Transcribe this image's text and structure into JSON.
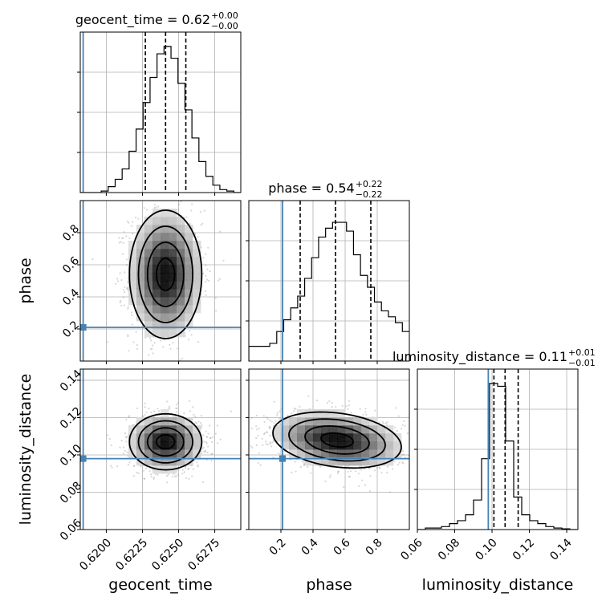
{
  "colors": {
    "truth": "#4682b4",
    "line": "#000000",
    "grid": "#b0b0b0"
  },
  "chart_data": {
    "type": "corner",
    "parameters": [
      "geocent_time",
      "phase",
      "luminosity_distance"
    ],
    "titles": [
      {
        "name": "geocent_time",
        "value": "0.62",
        "plus": "+0.00",
        "minus": "−0.00"
      },
      {
        "name": "phase",
        "value": "0.54",
        "plus": "+0.22",
        "minus": "−0.22"
      },
      {
        "name": "luminosity_distance",
        "value": "0.11",
        "plus": "+0.01",
        "minus": "−0.01"
      }
    ],
    "ranges": [
      [
        0.6182,
        0.6293
      ],
      [
        0.0,
        1.0
      ],
      [
        0.06,
        0.146
      ]
    ],
    "ticks": {
      "geocent_time": [
        0.62,
        0.6225,
        0.625,
        0.6275
      ],
      "phase": [
        0.2,
        0.4,
        0.6,
        0.8
      ],
      "luminosity_distance": [
        0.06,
        0.08,
        0.1,
        0.12,
        0.14
      ]
    },
    "tick_labels": {
      "geocent_time": [
        "0.6200",
        "0.6225",
        "0.6250",
        "0.6275"
      ],
      "phase": [
        "0.2",
        "0.4",
        "0.6",
        "0.8"
      ],
      "luminosity_distance": [
        "0.06",
        "0.08",
        "0.10",
        "0.12",
        "0.14"
      ]
    },
    "truths": [
      0.6184,
      0.21,
      0.098
    ],
    "quantiles": [
      [
        0.6227,
        0.6241,
        0.6255
      ],
      [
        0.32,
        0.54,
        0.76
      ],
      [
        0.101,
        0.107,
        0.114
      ]
    ],
    "histograms": [
      [
        0,
        0,
        0,
        0.01,
        0.04,
        0.09,
        0.16,
        0.28,
        0.43,
        0.61,
        0.78,
        0.94,
        0.99,
        0.91,
        0.74,
        0.56,
        0.37,
        0.21,
        0.11,
        0.05,
        0.02,
        0.01,
        0.0
      ],
      [
        0.1,
        0.1,
        0.1,
        0.12,
        0.2,
        0.28,
        0.36,
        0.44,
        0.56,
        0.7,
        0.84,
        0.9,
        0.94,
        0.94,
        0.88,
        0.72,
        0.58,
        0.5,
        0.4,
        0.34,
        0.3,
        0.26,
        0.2
      ],
      [
        0,
        0.01,
        0.01,
        0.02,
        0.04,
        0.06,
        0.1,
        0.2,
        0.48,
        0.99,
        0.97,
        0.6,
        0.22,
        0.1,
        0.06,
        0.04,
        0.02,
        0.01,
        0.005,
        0.0
      ]
    ],
    "density_2d": [
      {
        "pair": [
          0,
          1
        ],
        "center": [
          0.6241,
          0.54
        ],
        "sigma": [
          0.00125,
          0.2
        ],
        "rho": 0.0
      },
      {
        "pair": [
          0,
          2
        ],
        "center": [
          0.6241,
          0.107
        ],
        "sigma": [
          0.00125,
          0.0075
        ],
        "rho": 0.0
      },
      {
        "pair": [
          1,
          2
        ],
        "center": [
          0.55,
          0.108
        ],
        "sigma": [
          0.2,
          0.0075
        ],
        "rho": -0.25
      }
    ],
    "grid": true
  }
}
